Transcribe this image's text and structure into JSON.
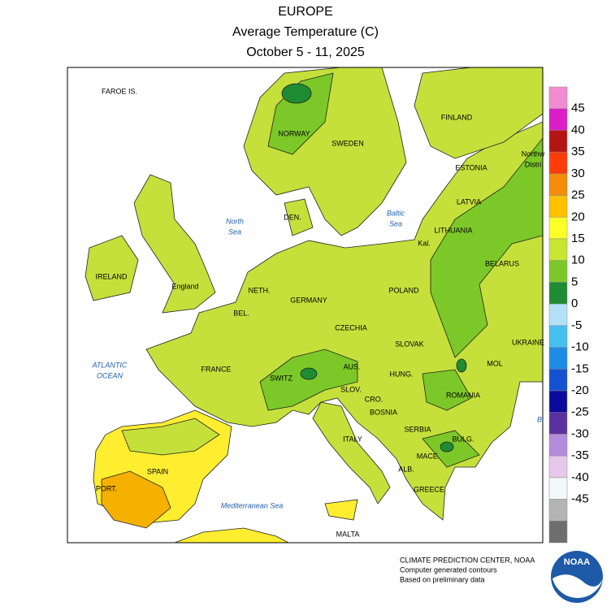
{
  "header": {
    "title": "EUROPE",
    "subtitle": "Average Temperature (C)",
    "period": "October 5 - 11, 2025"
  },
  "map": {
    "labels": [
      "FAROE IS.",
      "NORWAY",
      "SWEDEN",
      "FINLAND",
      "ESTONIA",
      "Northw",
      "Distri",
      "LATVIA",
      "LITHUANIA",
      "Kal.",
      "BELARUS",
      "Baltic",
      "Sea",
      "North",
      "Sea",
      "DEN.",
      "IRELAND",
      "England",
      "NETH.",
      "BEL.",
      "GERMANY",
      "POLAND",
      "CZECHIA",
      "SLOVAK",
      "UKRAINE",
      "MOL",
      "ATLANTIC",
      "OCEAN",
      "FRANCE",
      "SWITZ",
      "AUS.",
      "HUNG.",
      "ROMANIA",
      "SLOV.",
      "CRO.",
      "BOSNIA",
      "SERBIA",
      "BULG.",
      "MACE.",
      "ALB.",
      "ITALY",
      "SPAIN",
      "PORT.",
      "GREECE",
      "Mediterranean Sea",
      "MALTA",
      "B"
    ]
  },
  "legend": {
    "ticks": [
      45,
      40,
      35,
      30,
      25,
      20,
      15,
      10,
      5,
      0,
      -5,
      -10,
      -15,
      -20,
      -25,
      -30,
      -35,
      -40,
      -45
    ],
    "colors": [
      "#f28cd2",
      "#dc1ec8",
      "#b41414",
      "#ff3c0a",
      "#f58c0a",
      "#ffc000",
      "#ffff28",
      "#c8e632",
      "#7cc828",
      "#1e8c32",
      "#b4e1f8",
      "#46c0f0",
      "#1e8ce6",
      "#1450d2",
      "#0a0a9c",
      "#5a32a0",
      "#b48cdc",
      "#e6c8ec",
      "#f0f8f8",
      "#b4b4b4",
      "#6e6e6e"
    ]
  },
  "footer": {
    "lines": [
      "CLIMATE PREDICTION CENTER, NOAA",
      "Computer generated contours",
      "Based on preliminary data"
    ],
    "logo": "NOAA"
  }
}
